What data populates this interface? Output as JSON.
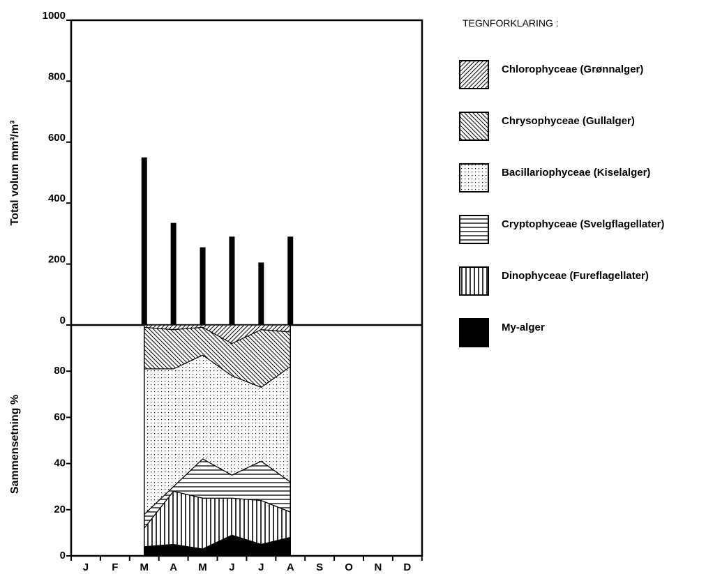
{
  "chart_data": [
    {
      "type": "bar",
      "ylabel": "Total volum mm³/m³",
      "ylim": [
        0,
        1000
      ],
      "yticks": [
        "0",
        "200",
        "400",
        "600",
        "800",
        "1000"
      ],
      "categories": [
        "M",
        "J",
        "J",
        "A",
        "S",
        "O"
      ],
      "values": [
        550,
        335,
        255,
        290,
        205,
        290
      ]
    },
    {
      "type": "area",
      "stacked": true,
      "ylabel": "Sammensetning %",
      "ylim": [
        0,
        100
      ],
      "yticks": [
        "0",
        "20",
        "40",
        "60",
        "80"
      ],
      "months": [
        "J",
        "F",
        "M",
        "A",
        "M",
        "J",
        "J",
        "A",
        "S",
        "O",
        "N",
        "D"
      ],
      "x": [
        "M",
        "J",
        "J",
        "A",
        "S",
        "O"
      ],
      "series": [
        {
          "name": "My-alger",
          "pattern": "solid",
          "values": [
            4,
            5,
            3,
            9,
            5,
            8
          ]
        },
        {
          "name": "Dinophyceae (Fureflagellater)",
          "pattern": "vertical",
          "values": [
            8,
            23,
            22,
            16,
            19,
            11
          ]
        },
        {
          "name": "Cryptophyceae (Svelgflagellater)",
          "pattern": "horizontal",
          "values": [
            6,
            2,
            17,
            10,
            17,
            13
          ]
        },
        {
          "name": "Bacillariophyceae (Kiselalger)",
          "pattern": "dots",
          "values": [
            63,
            51,
            45,
            43,
            32,
            50
          ]
        },
        {
          "name": "Chrysophyceae (Gullalger)",
          "pattern": "diag-back",
          "values": [
            18,
            17,
            12,
            14,
            25,
            15
          ]
        },
        {
          "name": "Chlorophyceae (Grønnalger)",
          "pattern": "diag-fwd",
          "values": [
            1,
            2,
            1,
            8,
            2,
            3
          ]
        }
      ]
    }
  ],
  "legend": {
    "title": "TEGNFORKLARING :",
    "items": [
      {
        "label": "Chlorophyceae (Grønnalger)",
        "pattern": "diag-fwd"
      },
      {
        "label": "Chrysophyceae (Gullalger)",
        "pattern": "diag-back"
      },
      {
        "label": "Bacillariophyceae (Kiselalger)",
        "pattern": "dots"
      },
      {
        "label": "Cryptophyceae (Svelgflagellater)",
        "pattern": "horizontal"
      },
      {
        "label": "Dinophyceae (Fureflagellater)",
        "pattern": "vertical"
      },
      {
        "label": "My-alger",
        "pattern": "solid"
      }
    ]
  },
  "colors": {
    "ink": "#000000",
    "background": "#ffffff"
  }
}
